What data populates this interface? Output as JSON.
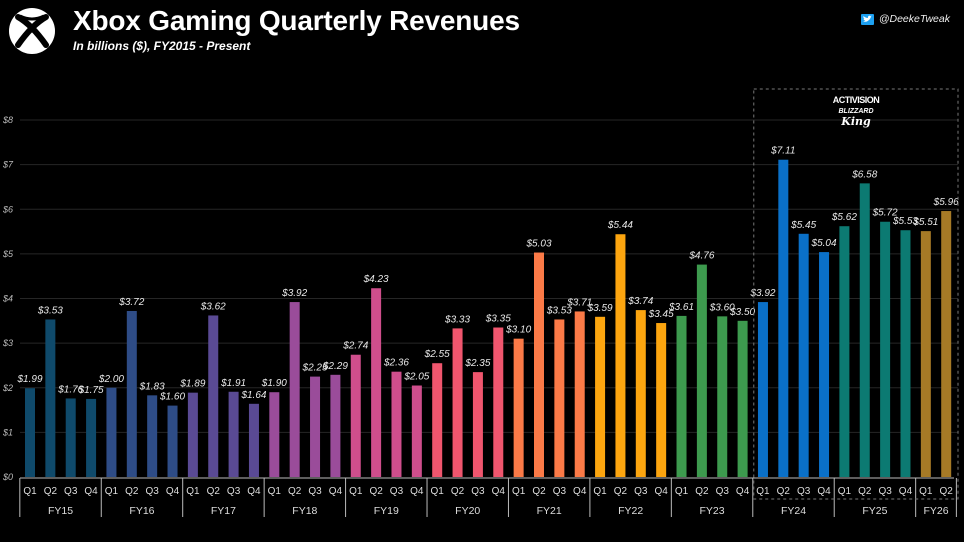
{
  "header": {
    "title": "Xbox Gaming Quarterly Revenues",
    "subtitle": "In billions ($), FY2015 - Present",
    "credit": "@DeekeTweak",
    "logo_icon": "xbox-logo-icon",
    "credit_icon": "twitter-bird-icon"
  },
  "annotation": {
    "line1": "ACTIVISION",
    "line2": "BLIZZARD",
    "line3": "King",
    "note": "Dashed box highlights post-Activision Blizzard King acquisition period (FY24 onward)"
  },
  "chart_data": {
    "type": "bar",
    "title": "Xbox Gaming Quarterly Revenues",
    "subtitle": "In billions ($), FY2015 - Present",
    "xlabel": "",
    "ylabel": "",
    "ylim": [
      0,
      8
    ],
    "yticks": [
      0,
      1,
      2,
      3,
      4,
      5,
      6,
      7,
      8
    ],
    "ytick_labels": [
      "$0",
      "$1",
      "$2",
      "$3",
      "$4",
      "$5",
      "$6",
      "$7",
      "$8"
    ],
    "grid": true,
    "value_prefix": "$",
    "groups": [
      {
        "label": "FY15",
        "color": "#0f4a6b",
        "quarters": [
          "Q1",
          "Q2",
          "Q3",
          "Q4"
        ],
        "values": [
          1.99,
          3.53,
          1.76,
          1.75
        ]
      },
      {
        "label": "FY16",
        "color": "#2e4c86",
        "quarters": [
          "Q1",
          "Q2",
          "Q3",
          "Q4"
        ],
        "values": [
          2.0,
          3.72,
          1.83,
          1.6
        ]
      },
      {
        "label": "FY17",
        "color": "#5a4a94",
        "quarters": [
          "Q1",
          "Q2",
          "Q3",
          "Q4"
        ],
        "values": [
          1.89,
          3.62,
          1.91,
          1.64
        ]
      },
      {
        "label": "FY18",
        "color": "#9a4c9a",
        "quarters": [
          "Q1",
          "Q2",
          "Q3",
          "Q4"
        ],
        "values": [
          1.9,
          3.92,
          2.25,
          2.29
        ]
      },
      {
        "label": "FY19",
        "color": "#cf4e8c",
        "quarters": [
          "Q1",
          "Q2",
          "Q3",
          "Q4"
        ],
        "values": [
          2.74,
          4.23,
          2.36,
          2.05
        ]
      },
      {
        "label": "FY20",
        "color": "#f0566e",
        "quarters": [
          "Q1",
          "Q2",
          "Q3",
          "Q4"
        ],
        "values": [
          2.55,
          3.33,
          2.35,
          3.35
        ]
      },
      {
        "label": "FY21",
        "color": "#fb7a47",
        "quarters": [
          "Q1",
          "Q2",
          "Q3",
          "Q4"
        ],
        "values": [
          3.1,
          5.03,
          3.53,
          3.71
        ]
      },
      {
        "label": "FY22",
        "color": "#fca50f",
        "quarters": [
          "Q1",
          "Q2",
          "Q3",
          "Q4"
        ],
        "values": [
          3.59,
          5.44,
          3.74,
          3.45
        ]
      },
      {
        "label": "FY23",
        "color": "#3d9a4e",
        "quarters": [
          "Q1",
          "Q2",
          "Q3",
          "Q4"
        ],
        "values": [
          3.61,
          4.76,
          3.6,
          3.5
        ]
      },
      {
        "label": "FY24",
        "color": "#0a70c8",
        "quarters": [
          "Q1",
          "Q2",
          "Q3",
          "Q4"
        ],
        "values": [
          3.92,
          7.11,
          5.45,
          5.04
        ]
      },
      {
        "label": "FY25",
        "color": "#0c7a72",
        "quarters": [
          "Q1",
          "Q2",
          "Q3",
          "Q4"
        ],
        "values": [
          5.62,
          6.58,
          5.72,
          5.53
        ]
      },
      {
        "label": "FY26",
        "color": "#a67a26",
        "quarters": [
          "Q1",
          "Q2"
        ],
        "values": [
          5.51,
          5.96
        ]
      }
    ],
    "highlight_region": {
      "from_group": "FY24",
      "to_group": "FY26",
      "style": "dashed-box"
    }
  }
}
